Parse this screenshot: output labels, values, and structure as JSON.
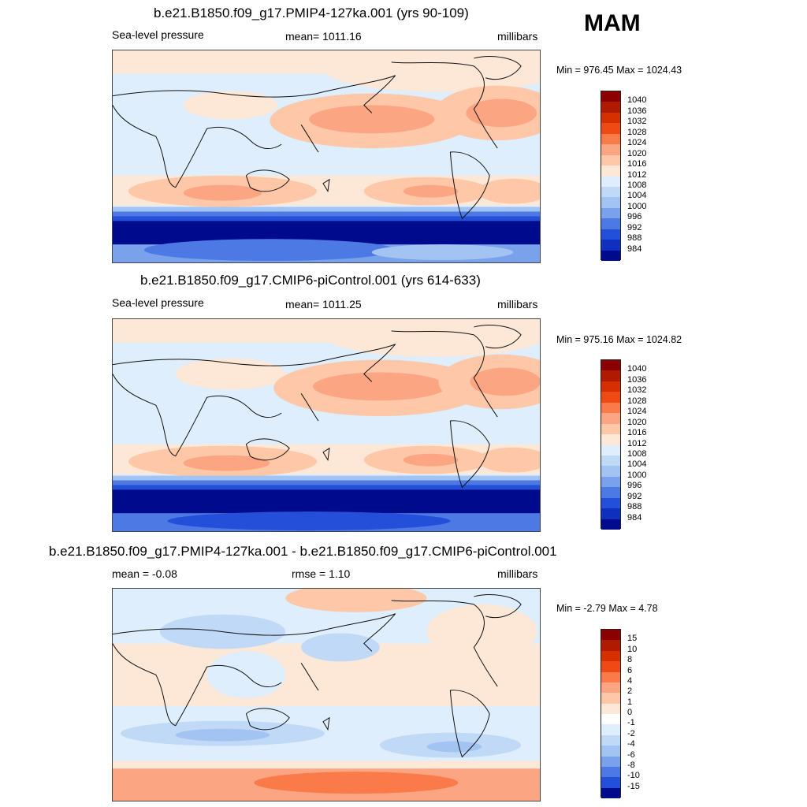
{
  "season": "MAM",
  "panels": [
    {
      "title": "b.e21.B1850.f09_g17.PMIP4-127ka.001 (yrs 90-109)",
      "left_label": "Sea-level pressure",
      "center_label": "mean= 1011.16",
      "units": "millibars",
      "minmax": "Min = 976.45 Max = 1024.43"
    },
    {
      "title": "b.e21.B1850.f09_g17.CMIP6-piControl.001 (yrs 614-633)",
      "left_label": "Sea-level pressure",
      "center_label": "mean= 1011.25",
      "units": "millibars",
      "minmax": "Min = 975.16 Max = 1024.82"
    },
    {
      "title": "b.e21.B1850.f09_g17.PMIP4-127ka.001 - b.e21.B1850.f09_g17.CMIP6-piControl.001",
      "left_label": "mean =  -0.08",
      "center_label": "rmse =   1.10",
      "units": "millibars",
      "minmax": "Min =  -2.79 Max =   4.78"
    }
  ],
  "colorbars": {
    "slp": {
      "labels": [
        "1040",
        "1036",
        "1032",
        "1028",
        "1024",
        "1020",
        "1016",
        "1012",
        "1008",
        "1004",
        "1000",
        "996",
        "992",
        "988",
        "984"
      ],
      "colors": [
        "#8b0000",
        "#b01a00",
        "#d63000",
        "#f04a14",
        "#fa7a4a",
        "#fca583",
        "#fdc7a8",
        "#fde7d6",
        "#deeefc",
        "#c0d9f7",
        "#a3c4f2",
        "#7aa2ec",
        "#4d79e5",
        "#2450d9",
        "#0f2fbf",
        "#000a8c"
      ]
    },
    "diff": {
      "labels": [
        "15",
        "10",
        "8",
        "6",
        "4",
        "2",
        "1",
        "0",
        "-1",
        "-2",
        "-4",
        "-6",
        "-8",
        "-10",
        "-15"
      ],
      "colors": [
        "#8b0000",
        "#b01a00",
        "#d63000",
        "#f04a14",
        "#fa7a4a",
        "#fca583",
        "#fdc7a8",
        "#fde7d6",
        "#ffffff",
        "#deeefc",
        "#c0d9f7",
        "#a3c4f2",
        "#7aa2ec",
        "#4d79e5",
        "#2450d9",
        "#000a8c"
      ]
    }
  }
}
